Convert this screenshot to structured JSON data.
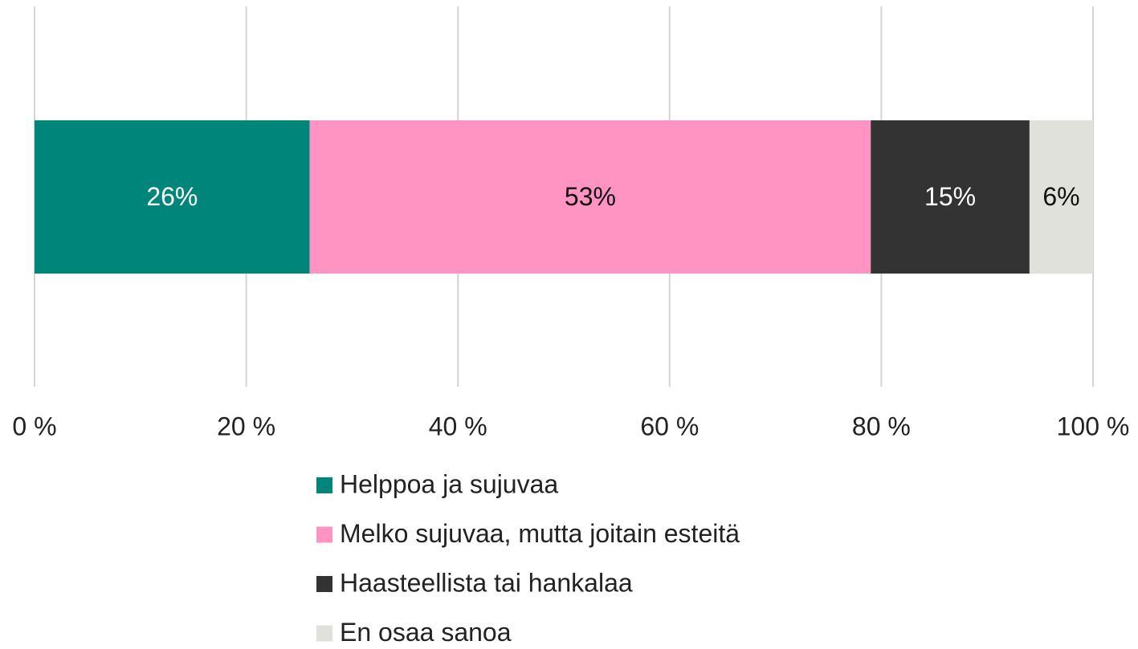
{
  "chart_data": {
    "type": "stacked_barh",
    "categories": [
      null
    ],
    "series": [
      {
        "name": "Helppoa ja sujuvaa",
        "color": "#00857a",
        "values": [
          26
        ],
        "value_labels": [
          "26%"
        ]
      },
      {
        "name": "Melko sujuvaa, mutta joitain esteitä",
        "color": "#ff94c2",
        "values": [
          53
        ],
        "value_labels": [
          "53%"
        ]
      },
      {
        "name": "Haasteellista tai hankalaa",
        "color": "#333333",
        "values": [
          15
        ],
        "value_labels": [
          "15%"
        ]
      },
      {
        "name": "En osaa sanoa",
        "color": "#e1e1dc",
        "values": [
          6
        ],
        "value_labels": [
          "6%"
        ]
      }
    ],
    "xlim": [
      0,
      100
    ],
    "xticks": [
      {
        "value": 0,
        "label": "0 %"
      },
      {
        "value": 20,
        "label": "20 %"
      },
      {
        "value": 40,
        "label": "40 %"
      },
      {
        "value": 60,
        "label": "60 %"
      },
      {
        "value": 80,
        "label": "80 %"
      },
      {
        "value": 100,
        "label": "100 %"
      }
    ],
    "grid": true,
    "legend": "bottom"
  }
}
